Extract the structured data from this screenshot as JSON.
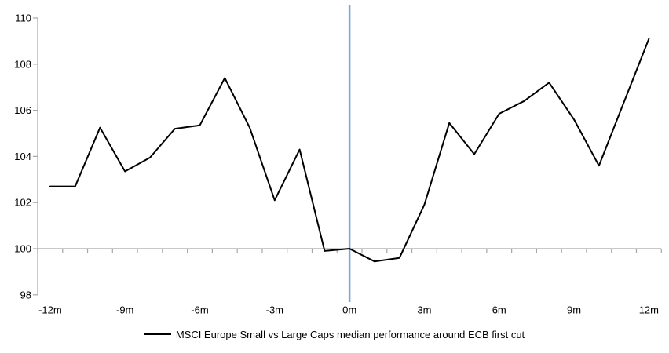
{
  "chart_data": {
    "type": "line",
    "title": "",
    "legend": {
      "position": "bottom",
      "label": "MSCI Europe Small vs Large Caps median performance around ECB first cut"
    },
    "x_axis": {
      "tick_labels": [
        "-12m",
        "-9m",
        "-6m",
        "-3m",
        "0m",
        "3m",
        "6m",
        "9m",
        "12m"
      ],
      "tick_months": [
        -12,
        -9,
        -6,
        -3,
        0,
        3,
        6,
        9,
        12
      ],
      "minor_ticks": "every month",
      "range_months": [
        -12,
        12
      ]
    },
    "y_axis": {
      "tick_labels": [
        "98",
        "100",
        "102",
        "104",
        "106",
        "108",
        "110"
      ],
      "ticks": [
        98,
        100,
        102,
        104,
        106,
        108,
        110
      ],
      "min": 98,
      "max": 110
    },
    "reference_lines": [
      {
        "orientation": "vertical",
        "at_month": 0,
        "color": "#7DA6D4"
      },
      {
        "orientation": "horizontal",
        "at_value": 100,
        "color": "#A6A6A6"
      }
    ],
    "series": [
      {
        "name": "MSCI Europe Small vs Large Caps median performance around ECB first cut",
        "color": "#000000",
        "x_months": [
          -12,
          -11,
          -10,
          -9,
          -8,
          -7,
          -6,
          -5,
          -4,
          -3,
          -2,
          -1,
          0,
          1,
          2,
          3,
          4,
          5,
          6,
          7,
          8,
          9,
          10,
          11,
          12
        ],
        "values": [
          102.7,
          102.7,
          105.25,
          103.35,
          103.95,
          105.2,
          105.35,
          107.4,
          105.25,
          102.1,
          104.3,
          99.9,
          100.0,
          99.45,
          99.6,
          101.9,
          105.45,
          104.1,
          105.85,
          106.4,
          107.2,
          105.6,
          103.6,
          106.35,
          109.1
        ]
      }
    ],
    "colors": {
      "axis": "#A6A6A6",
      "text": "#000000",
      "background": "#FFFFFF",
      "event_line": "#7DA6D4",
      "series_line": "#000000"
    }
  }
}
